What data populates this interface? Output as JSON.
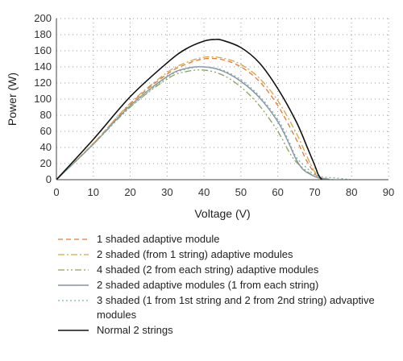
{
  "chart_data": {
    "type": "line",
    "xlabel": "Voltage (V)",
    "ylabel": "Power (W)",
    "xlim": [
      0,
      90
    ],
    "ylim": [
      0,
      200
    ],
    "xticks": [
      0,
      10,
      20,
      30,
      40,
      50,
      60,
      70,
      80,
      90
    ],
    "yticks": [
      0,
      20,
      40,
      60,
      80,
      100,
      120,
      140,
      160,
      180,
      200
    ],
    "grid": "dotted",
    "legend_position": "bottom",
    "series": [
      {
        "name": "1 shaded adaptive module",
        "color": "#e07b39",
        "dash": "6,4",
        "width": 1.3,
        "points": [
          [
            0,
            0
          ],
          [
            10,
            45
          ],
          [
            20,
            94
          ],
          [
            30,
            131
          ],
          [
            35,
            143
          ],
          [
            40,
            150
          ],
          [
            45,
            149
          ],
          [
            50,
            140
          ],
          [
            55,
            122
          ],
          [
            60,
            92
          ],
          [
            65,
            50
          ],
          [
            68,
            22
          ],
          [
            70,
            8
          ],
          [
            71,
            3
          ],
          [
            72,
            0
          ]
        ]
      },
      {
        "name": "2 shaded (from 1 string) adaptive modules",
        "color": "#d9a441",
        "dash": "8,3,2,3",
        "width": 1.3,
        "points": [
          [
            0,
            0
          ],
          [
            10,
            45
          ],
          [
            20,
            95
          ],
          [
            30,
            133
          ],
          [
            35,
            145
          ],
          [
            40,
            152
          ],
          [
            45,
            151
          ],
          [
            50,
            143
          ],
          [
            55,
            126
          ],
          [
            60,
            98
          ],
          [
            65,
            58
          ],
          [
            68,
            28
          ],
          [
            70,
            10
          ],
          [
            72,
            2
          ],
          [
            74,
            0
          ]
        ]
      },
      {
        "name": "4 shaded (2 from each string) adaptive modules",
        "color": "#8aa356",
        "dash": "8,3,2,3,2,3",
        "width": 1.3,
        "points": [
          [
            0,
            0
          ],
          [
            10,
            44
          ],
          [
            20,
            90
          ],
          [
            30,
            125
          ],
          [
            35,
            134
          ],
          [
            40,
            136
          ],
          [
            45,
            130
          ],
          [
            50,
            115
          ],
          [
            55,
            92
          ],
          [
            60,
            60
          ],
          [
            63,
            35
          ],
          [
            65,
            22
          ],
          [
            68,
            10
          ],
          [
            70,
            4
          ],
          [
            72,
            2
          ],
          [
            75,
            0
          ]
        ]
      },
      {
        "name": "2 shaded adaptive modules (1 from each string)",
        "color": "#8494a6",
        "dash": "",
        "width": 1.4,
        "points": [
          [
            0,
            0
          ],
          [
            10,
            44
          ],
          [
            20,
            92
          ],
          [
            30,
            128
          ],
          [
            35,
            138
          ],
          [
            40,
            140
          ],
          [
            45,
            135
          ],
          [
            50,
            122
          ],
          [
            55,
            102
          ],
          [
            60,
            72
          ],
          [
            63,
            45
          ],
          [
            65,
            25
          ],
          [
            67,
            12
          ],
          [
            70,
            4
          ],
          [
            72,
            1
          ],
          [
            74,
            0
          ]
        ]
      },
      {
        "name": "3 shaded (1 from 1st string and 2 from 2nd string) advaptive modules",
        "color": "#79b3a8",
        "dash": "2,3",
        "width": 1.3,
        "points": [
          [
            0,
            0
          ],
          [
            10,
            44
          ],
          [
            20,
            90
          ],
          [
            30,
            127
          ],
          [
            35,
            137
          ],
          [
            40,
            140
          ],
          [
            45,
            136
          ],
          [
            50,
            124
          ],
          [
            55,
            104
          ],
          [
            60,
            75
          ],
          [
            63,
            48
          ],
          [
            65,
            28
          ],
          [
            68,
            14
          ],
          [
            70,
            6
          ],
          [
            73,
            3
          ],
          [
            76,
            2
          ],
          [
            80,
            0
          ]
        ]
      },
      {
        "name": "Normal 2 strings",
        "color": "#111111",
        "dash": "",
        "width": 1.6,
        "points": [
          [
            0,
            0
          ],
          [
            10,
            50
          ],
          [
            20,
            103
          ],
          [
            30,
            145
          ],
          [
            35,
            162
          ],
          [
            40,
            172
          ],
          [
            43,
            174
          ],
          [
            45,
            173
          ],
          [
            50,
            164
          ],
          [
            55,
            145
          ],
          [
            60,
            113
          ],
          [
            65,
            72
          ],
          [
            68,
            40
          ],
          [
            70,
            18
          ],
          [
            71,
            6
          ],
          [
            72,
            0
          ]
        ]
      }
    ]
  }
}
